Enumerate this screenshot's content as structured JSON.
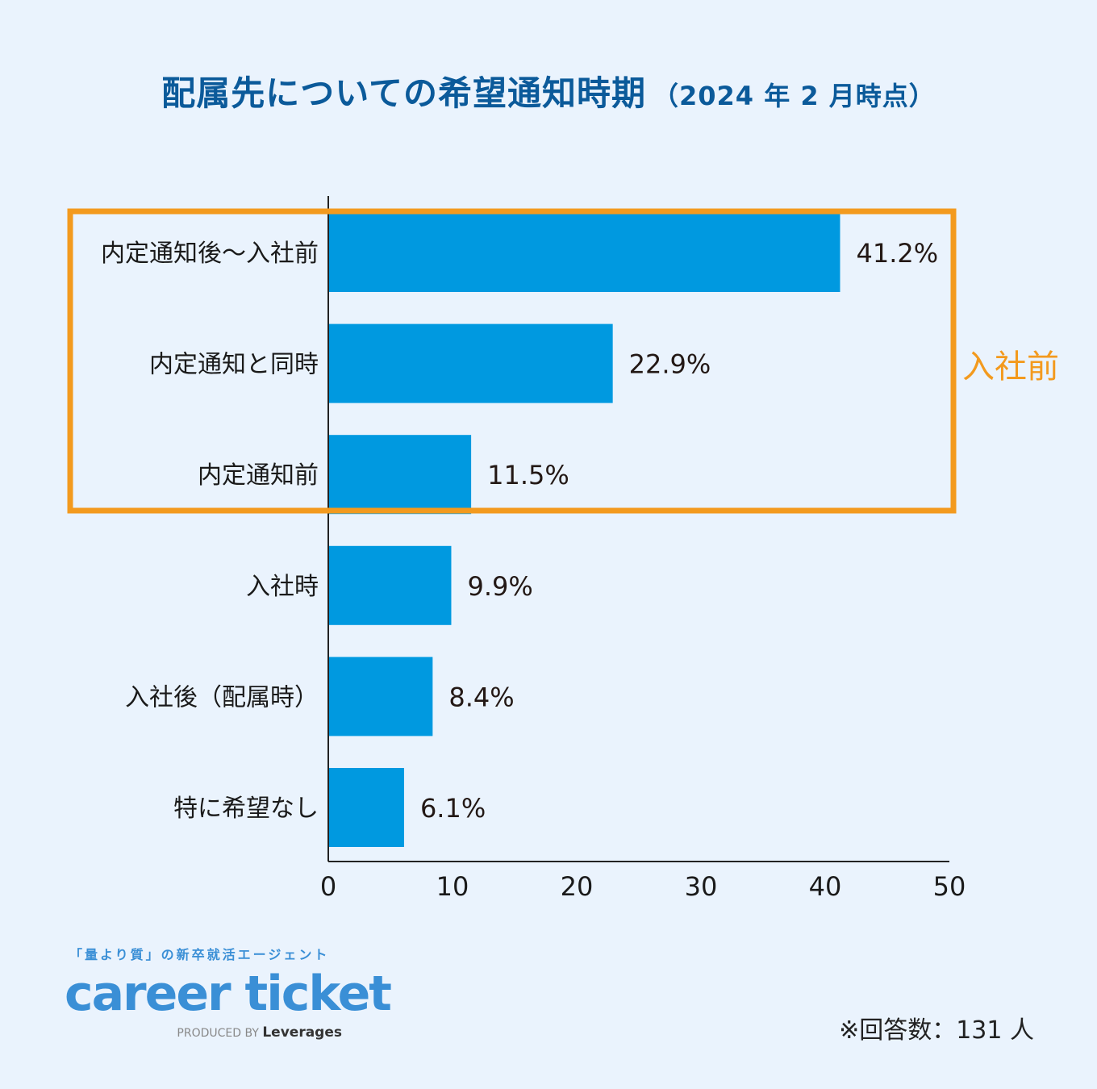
{
  "title": {
    "main": "配属先についての希望通知時期",
    "sub": "（2024 年 2 月時点）"
  },
  "chart_data": {
    "type": "bar",
    "orientation": "horizontal",
    "categories": [
      "内定通知後～入社前",
      "内定通知と同時",
      "内定通知前",
      "入社時",
      "入社後（配属時）",
      "特に希望なし"
    ],
    "values": [
      41.2,
      22.9,
      11.5,
      9.9,
      8.4,
      6.1
    ],
    "value_labels": [
      "41.2%",
      "22.9%",
      "11.5%",
      "9.9%",
      "8.4%",
      "6.1%"
    ],
    "xlim": [
      0,
      50
    ],
    "xticks": [
      "0",
      "10",
      "20",
      "30",
      "40",
      "50"
    ],
    "grid": false,
    "highlight": {
      "label": "入社前",
      "categories": [
        "内定通知後～入社前",
        "内定通知と同時",
        "内定通知前"
      ],
      "color": "#f39a1e"
    },
    "bar_color": "#0099e0"
  },
  "footer": {
    "tagline": "「量より質」の新卒就活エージェント",
    "brand": "career ticket",
    "produced_by": "PRODUCED BY",
    "company": "Leverages",
    "respondents": "※回答数：131 人"
  }
}
